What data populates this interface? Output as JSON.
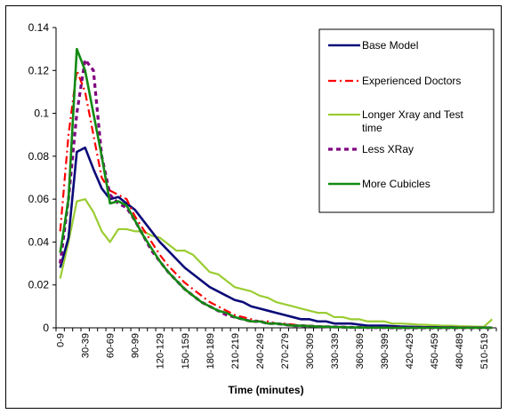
{
  "colors": {
    "base_model": "#0a0a78",
    "experienced_doctors": "#ff0000",
    "longer_xray_and_test_time": "#9acd32",
    "less_xray": "#800080",
    "more_cubicles": "#138a13",
    "axis": "#000000",
    "background": "#ffffff"
  },
  "chart_data": {
    "type": "line",
    "title": "",
    "xlabel": "Time (minutes)",
    "ylabel": "",
    "ylim": [
      0,
      0.14
    ],
    "y_ticks": [
      "0",
      "0.02",
      "0.04",
      "0.06",
      "0.08",
      "0.1",
      "0.12",
      "0.14"
    ],
    "grid": false,
    "legend_position": "top-right",
    "categories": [
      "0-9",
      "10-19",
      "20-29",
      "30-39",
      "40-49",
      "50-59",
      "60-69",
      "70-79",
      "80-89",
      "90-99",
      "100-109",
      "110-119",
      "120-129",
      "130-139",
      "140-149",
      "150-159",
      "160-169",
      "170-179",
      "180-189",
      "190-199",
      "200-209",
      "210-219",
      "220-229",
      "230-239",
      "240-249",
      "250-259",
      "260-269",
      "270-279",
      "280-289",
      "290-299",
      "300-309",
      "310-319",
      "320-329",
      "330-339",
      "340-349",
      "350-359",
      "360-369",
      "370-379",
      "380-389",
      "390-399",
      "400-409",
      "410-419",
      "420-429",
      "430-439",
      "440-449",
      "450-459",
      "460-469",
      "470-479",
      "480-489",
      "490-499",
      "500-509",
      "510-519",
      "520-529"
    ],
    "x_tick_labels": [
      "0-9",
      "",
      "",
      "30-39",
      "",
      "",
      "60-69",
      "",
      "",
      "90-99",
      "",
      "",
      "120-129",
      "",
      "",
      "150-159",
      "",
      "",
      "180-189",
      "",
      "",
      "210-219",
      "",
      "",
      "240-249",
      "",
      "",
      "270-279",
      "",
      "",
      "300-309",
      "",
      "",
      "330-339",
      "",
      "",
      "360-369",
      "",
      "",
      "390-399",
      "",
      "",
      "420-429",
      "",
      "",
      "450-459",
      "",
      "",
      "480-489",
      "",
      "",
      "510-519",
      ""
    ],
    "series": [
      {
        "name": "Base Model",
        "values": [
          0.028,
          0.042,
          0.082,
          0.084,
          0.074,
          0.065,
          0.06,
          0.061,
          0.058,
          0.055,
          0.05,
          0.045,
          0.04,
          0.036,
          0.032,
          0.028,
          0.025,
          0.022,
          0.019,
          0.017,
          0.015,
          0.013,
          0.012,
          0.01,
          0.009,
          0.008,
          0.007,
          0.006,
          0.005,
          0.004,
          0.004,
          0.003,
          0.003,
          0.002,
          0.002,
          0.002,
          0.0015,
          0.001,
          0.001,
          0.001,
          0.0008,
          0.0006,
          0.0005,
          0.0004,
          0.0003,
          0.0003,
          0.0002,
          0.0002,
          0.0001,
          0.0001,
          0.0001,
          0.0001,
          0.0001
        ]
      },
      {
        "name": "Experienced Doctors",
        "values": [
          0.045,
          0.09,
          0.12,
          0.11,
          0.09,
          0.07,
          0.064,
          0.062,
          0.06,
          0.052,
          0.046,
          0.04,
          0.034,
          0.029,
          0.025,
          0.021,
          0.018,
          0.015,
          0.012,
          0.01,
          0.008,
          0.006,
          0.005,
          0.004,
          0.003,
          0.003,
          0.002,
          0.002,
          0.0015,
          0.001,
          0.001,
          0.0008,
          0.0006,
          0.0005,
          0.0004,
          0.0003,
          0.0002,
          0.0002,
          0.0001,
          0.0001,
          0.0001,
          0,
          0,
          0,
          0,
          0,
          0,
          0,
          0,
          0,
          0,
          0,
          0
        ]
      },
      {
        "name": "Longer Xray and Test time",
        "values": [
          0.023,
          0.04,
          0.059,
          0.06,
          0.054,
          0.045,
          0.04,
          0.046,
          0.046,
          0.045,
          0.045,
          0.043,
          0.042,
          0.039,
          0.036,
          0.036,
          0.034,
          0.03,
          0.026,
          0.025,
          0.022,
          0.019,
          0.018,
          0.017,
          0.015,
          0.014,
          0.012,
          0.011,
          0.01,
          0.009,
          0.008,
          0.007,
          0.007,
          0.005,
          0.005,
          0.004,
          0.004,
          0.003,
          0.003,
          0.003,
          0.002,
          0.002,
          0.0018,
          0.0015,
          0.0014,
          0.0012,
          0.001,
          0.001,
          0.0008,
          0.0007,
          0.0006,
          0.0005,
          0.004
        ]
      },
      {
        "name": "Less XRay",
        "values": [
          0.03,
          0.06,
          0.1,
          0.125,
          0.12,
          0.08,
          0.062,
          0.058,
          0.056,
          0.05,
          0.043,
          0.036,
          0.031,
          0.026,
          0.022,
          0.018,
          0.015,
          0.012,
          0.01,
          0.008,
          0.006,
          0.005,
          0.004,
          0.003,
          0.003,
          0.002,
          0.002,
          0.0015,
          0.001,
          0.001,
          0.0008,
          0.0006,
          0.0005,
          0.0004,
          0.0003,
          0.0002,
          0.0002,
          0.0001,
          0.0001,
          0.0001,
          0,
          0,
          0,
          0,
          0,
          0,
          0,
          0,
          0,
          0,
          0,
          0,
          0
        ]
      },
      {
        "name": "More Cubicles",
        "values": [
          0.035,
          0.06,
          0.13,
          0.12,
          0.1,
          0.08,
          0.058,
          0.059,
          0.057,
          0.05,
          0.043,
          0.037,
          0.031,
          0.026,
          0.022,
          0.018,
          0.015,
          0.012,
          0.01,
          0.008,
          0.007,
          0.005,
          0.004,
          0.003,
          0.003,
          0.002,
          0.002,
          0.0015,
          0.001,
          0.001,
          0.0008,
          0.0006,
          0.0005,
          0.0004,
          0.0003,
          0.0002,
          0.0002,
          0.0001,
          0.0001,
          0.0001,
          0,
          0,
          0,
          0,
          0,
          0,
          0,
          0,
          0,
          0,
          0,
          0,
          0
        ]
      }
    ]
  }
}
